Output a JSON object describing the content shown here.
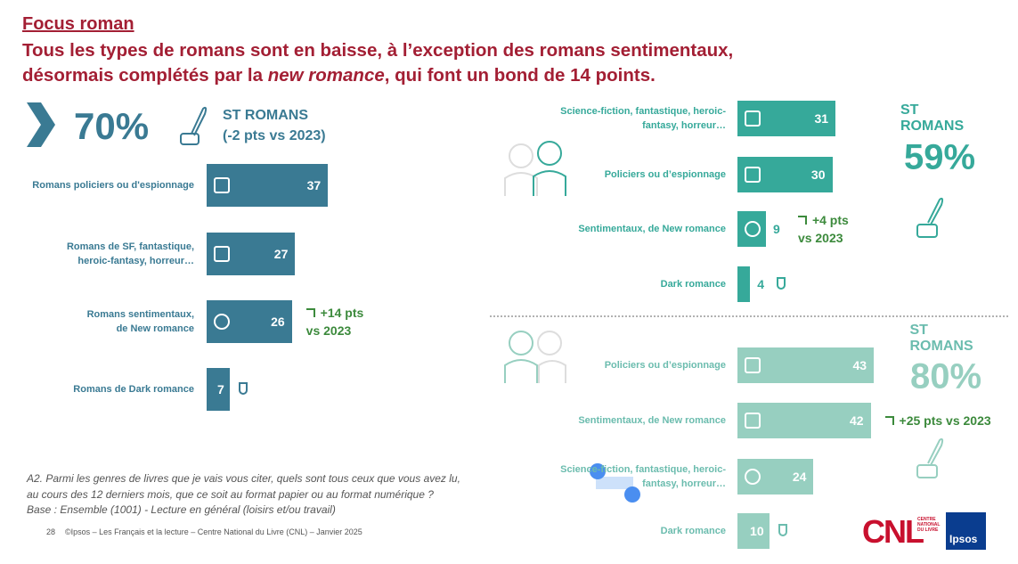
{
  "header": {
    "kicker": "Focus roman",
    "title_line1": "Tous les types de romans sont en baisse, à l’exception des romans sentimentaux,",
    "title_line2_start": "désormais complétés par la ",
    "title_line2_italic": "new romance",
    "title_line2_end": ", qui font un bond de 14 points."
  },
  "chart_data": [
    {
      "type": "bar",
      "orientation": "horizontal",
      "color": "#3a7a93",
      "label_color": "#3a7a93",
      "total": "70%",
      "total_label": "ST ROMANS",
      "total_change": "(-2 pts vs 2023)",
      "categories": [
        "Romans policiers ou d'espionnage",
        "Romans de SF, fantastique,\nheroic-fantasy, horreur…",
        "Romans sentimentaux,\nde New romance",
        "Romans de Dark romance"
      ],
      "values": [
        37,
        27,
        26,
        7
      ],
      "changes": [
        null,
        null,
        "+14 pts\nvs 2023",
        null
      ]
    },
    {
      "type": "bar",
      "orientation": "horizontal",
      "color": "#36a99a",
      "label_color": "#36a99a",
      "total": "59%",
      "total_label": "ST ROMANS",
      "categories": [
        "Science-fiction, fantastique, heroic-\nfantasy, horreur…",
        "Policiers ou d’espionnage",
        "Sentimentaux, de New romance",
        "Dark romance"
      ],
      "values": [
        31,
        30,
        9,
        4
      ],
      "changes": [
        null,
        null,
        "+4 pts\nvs 2023",
        null
      ]
    },
    {
      "type": "bar",
      "orientation": "horizontal",
      "color": "#97cfc0",
      "label_color": "#6bbcae",
      "total": "80%",
      "total_label": "ST ROMANS",
      "categories": [
        "Policiers ou d’espionnage",
        "Sentimentaux, de New romance",
        "Science-fiction, fantastique, heroic-\nfantasy, horreur…",
        "Dark romance"
      ],
      "values": [
        43,
        42,
        24,
        10
      ],
      "changes": [
        null,
        "+25 pts vs 2023",
        null,
        null
      ]
    }
  ],
  "footnote": {
    "line1": "A2. Parmi les genres de livres que je vais vous citer, quels sont tous ceux que vous avez lu,",
    "line2": "au cours des 12 derniers mois, que ce soit au format papier ou au format numérique ?",
    "line3": "Base : Ensemble (1001) - Lecture en général (loisirs et/ou travail)"
  },
  "footer": {
    "page": "28",
    "source": "©Ipsos – Les Français et la lecture – Centre National du Livre (CNL) – Janvier 2025"
  },
  "logos": {
    "cnl": "CNL",
    "cnl_name": "CENTRE\nNATIONAL\nDU LIVRE",
    "ipsos": "Ipsos"
  }
}
